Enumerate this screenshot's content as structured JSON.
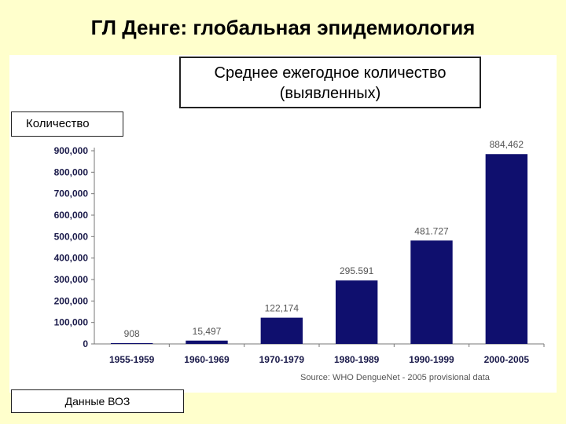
{
  "slide": {
    "title": "ГЛ Денге: глобальная эпидемиология",
    "subtitle": "Среднее ежегодное количество (выявленных)",
    "ylabel_box": "Количество",
    "credit_box": "Данные ВОЗ"
  },
  "colors": {
    "bar": "#0f0f6e",
    "background": "#ffffcc"
  },
  "chart_data": {
    "type": "bar",
    "categories": [
      "1955-1959",
      "1960-1969",
      "1970-1979",
      "1980-1989",
      "1990-1999",
      "2000-2005"
    ],
    "values": [
      908,
      15497,
      122174,
      295591,
      481727,
      884462
    ],
    "value_labels": [
      "908",
      "15,497",
      "122,174",
      "295.591",
      "481.727",
      "884,462"
    ],
    "ylim": [
      0,
      900000
    ],
    "yticks": [
      0,
      100000,
      200000,
      300000,
      400000,
      500000,
      600000,
      700000,
      800000,
      900000
    ],
    "ytick_labels": [
      "0",
      "100,000",
      "200,000",
      "300,000",
      "400,000",
      "500,000",
      "600,000",
      "700,000",
      "800,000",
      "900,000"
    ],
    "source": "Source: WHO DengueNet - 2005 provisional data",
    "grid": false,
    "legend": "none"
  }
}
